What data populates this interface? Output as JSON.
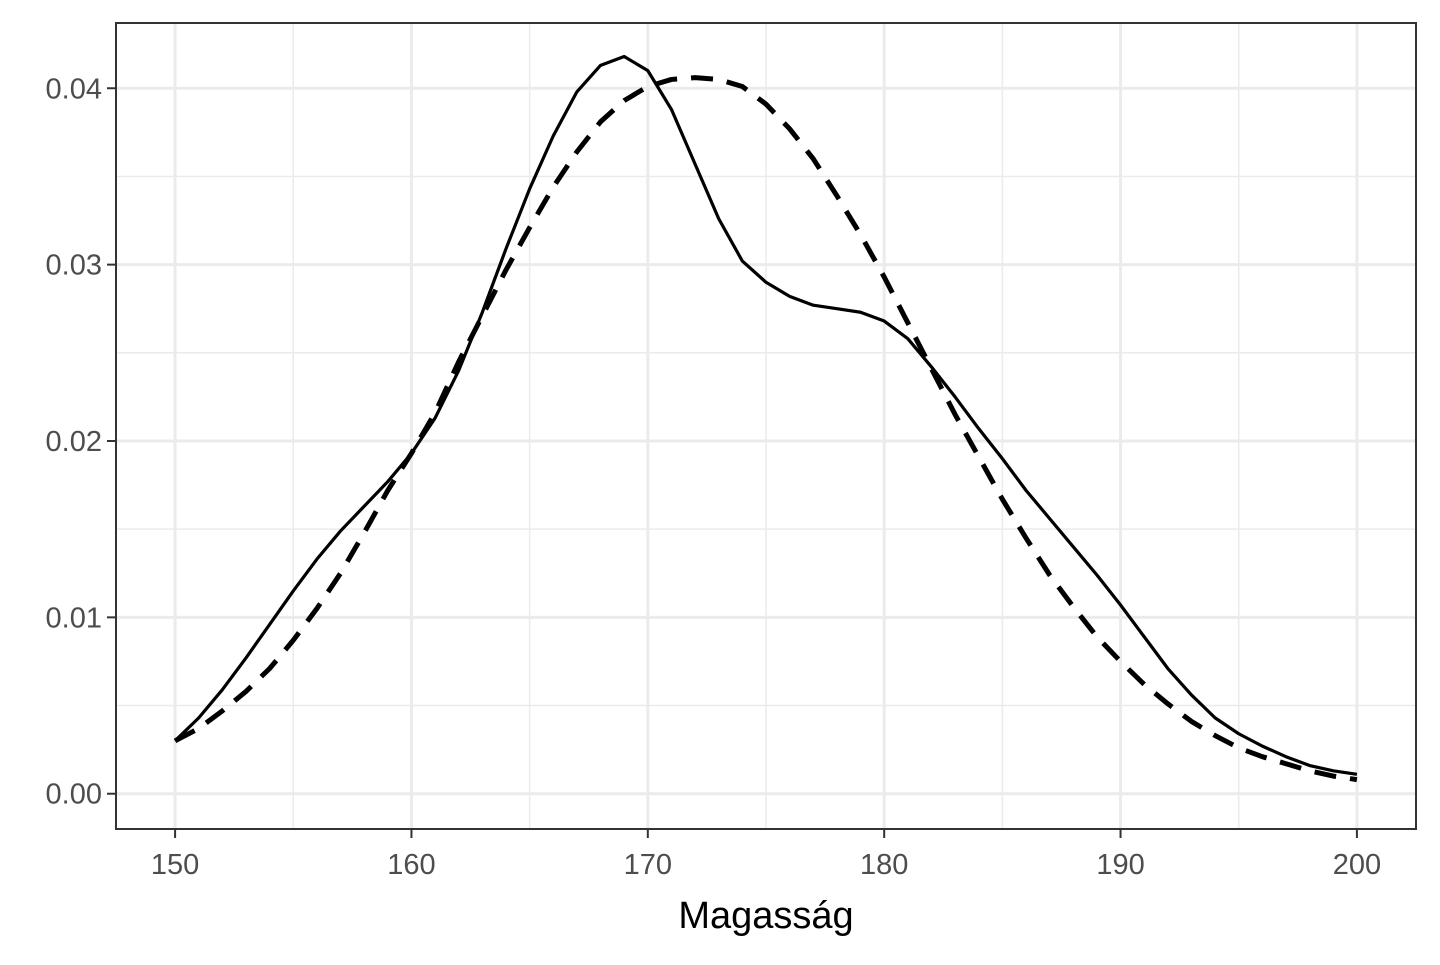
{
  "chart_data": {
    "type": "line",
    "title": "",
    "xlabel": "Magasság",
    "ylabel": "",
    "xlim": [
      147.5,
      202.5
    ],
    "ylim": [
      -0.002,
      0.0437
    ],
    "x_ticks": [
      150,
      160,
      170,
      180,
      190,
      200
    ],
    "x_tick_labels": [
      "150",
      "160",
      "170",
      "180",
      "190",
      "200"
    ],
    "x_minor_ticks": [
      155,
      165,
      175,
      185,
      195
    ],
    "y_ticks": [
      0,
      0.01,
      0.02,
      0.03,
      0.04
    ],
    "y_tick_labels": [
      "0.00",
      "0.01",
      "0.02",
      "0.03",
      "0.04"
    ],
    "y_minor_ticks": [
      0.005,
      0.015,
      0.025,
      0.035
    ],
    "grid": true,
    "legend": "none",
    "series": [
      {
        "style": "solid",
        "color": "#000000",
        "points": [
          [
            150,
            0.003
          ],
          [
            151,
            0.0043
          ],
          [
            152,
            0.0059
          ],
          [
            153,
            0.0077
          ],
          [
            154,
            0.0096
          ],
          [
            155,
            0.0115
          ],
          [
            156,
            0.0133
          ],
          [
            157,
            0.0149
          ],
          [
            158,
            0.0163
          ],
          [
            159,
            0.0177
          ],
          [
            160,
            0.0193
          ],
          [
            161,
            0.0213
          ],
          [
            162,
            0.024
          ],
          [
            163,
            0.0273
          ],
          [
            164,
            0.0309
          ],
          [
            165,
            0.0343
          ],
          [
            166,
            0.0373
          ],
          [
            167,
            0.0398
          ],
          [
            168,
            0.0413
          ],
          [
            169,
            0.0418
          ],
          [
            170,
            0.041
          ],
          [
            171,
            0.0388
          ],
          [
            172,
            0.0357
          ],
          [
            173,
            0.0326
          ],
          [
            174,
            0.0302
          ],
          [
            175,
            0.029
          ],
          [
            176,
            0.0282
          ],
          [
            177,
            0.0277
          ],
          [
            178,
            0.0275
          ],
          [
            179,
            0.0273
          ],
          [
            180,
            0.0268
          ],
          [
            181,
            0.0258
          ],
          [
            182,
            0.0242
          ],
          [
            183,
            0.0225
          ],
          [
            184,
            0.0207
          ],
          [
            185,
            0.019
          ],
          [
            186,
            0.0172
          ],
          [
            187,
            0.0156
          ],
          [
            188,
            0.014
          ],
          [
            189,
            0.0124
          ],
          [
            190,
            0.0107
          ],
          [
            191,
            0.0089
          ],
          [
            192,
            0.0071
          ],
          [
            193,
            0.0056
          ],
          [
            194,
            0.0043
          ],
          [
            195,
            0.0034
          ],
          [
            196,
            0.0027
          ],
          [
            197,
            0.0021
          ],
          [
            198,
            0.0016
          ],
          [
            199,
            0.0013
          ],
          [
            200,
            0.0011
          ]
        ]
      },
      {
        "style": "dashed",
        "color": "#000000",
        "points": [
          [
            150,
            0.003
          ],
          [
            151,
            0.0037
          ],
          [
            152,
            0.0047
          ],
          [
            153,
            0.0058
          ],
          [
            154,
            0.0071
          ],
          [
            155,
            0.0087
          ],
          [
            156,
            0.0105
          ],
          [
            157,
            0.0125
          ],
          [
            158,
            0.0148
          ],
          [
            159,
            0.0172
          ],
          [
            160,
            0.0193
          ],
          [
            161,
            0.0216
          ],
          [
            162,
            0.0245
          ],
          [
            163,
            0.0271
          ],
          [
            164,
            0.0297
          ],
          [
            165,
            0.0321
          ],
          [
            166,
            0.0344
          ],
          [
            167,
            0.0364
          ],
          [
            168,
            0.0381
          ],
          [
            169,
            0.0393
          ],
          [
            170,
            0.0401
          ],
          [
            171,
            0.0405
          ],
          [
            172,
            0.0406
          ],
          [
            173,
            0.0405
          ],
          [
            174,
            0.0401
          ],
          [
            175,
            0.0391
          ],
          [
            176,
            0.0377
          ],
          [
            177,
            0.036
          ],
          [
            178,
            0.0339
          ],
          [
            179,
            0.0317
          ],
          [
            180,
            0.0293
          ],
          [
            181,
            0.0267
          ],
          [
            182,
            0.0241
          ],
          [
            183,
            0.0215
          ],
          [
            184,
            0.0191
          ],
          [
            185,
            0.0167
          ],
          [
            186,
            0.0145
          ],
          [
            187,
            0.0124
          ],
          [
            188,
            0.0106
          ],
          [
            189,
            0.0089
          ],
          [
            190,
            0.0075
          ],
          [
            191,
            0.0062
          ],
          [
            192,
            0.0051
          ],
          [
            193,
            0.0041
          ],
          [
            194,
            0.0033
          ],
          [
            195,
            0.0026
          ],
          [
            196,
            0.0021
          ],
          [
            197,
            0.0017
          ],
          [
            198,
            0.0013
          ],
          [
            199,
            0.001
          ],
          [
            200,
            0.0008
          ]
        ]
      }
    ]
  }
}
